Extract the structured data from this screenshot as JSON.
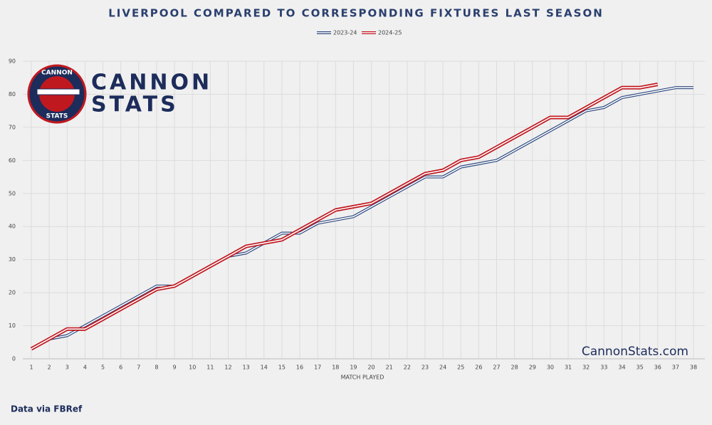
{
  "chart_data": {
    "type": "line",
    "title": "LIVERPOOL COMPARED TO CORRESPONDING FIXTURES LAST SEASON",
    "x_label": "MATCH PLAYED",
    "x": [
      1,
      2,
      3,
      4,
      5,
      6,
      7,
      8,
      9,
      10,
      11,
      12,
      13,
      14,
      15,
      16,
      17,
      18,
      19,
      20,
      21,
      22,
      23,
      24,
      25,
      26,
      27,
      28,
      29,
      30,
      31,
      32,
      33,
      34,
      35,
      36,
      37,
      38
    ],
    "xlim": [
      1,
      38
    ],
    "xticks": [
      1,
      2,
      3,
      4,
      5,
      6,
      7,
      8,
      9,
      10,
      11,
      12,
      13,
      14,
      15,
      16,
      17,
      18,
      19,
      20,
      21,
      22,
      23,
      24,
      25,
      26,
      27,
      28,
      29,
      30,
      31,
      32,
      33,
      34,
      35,
      36,
      37,
      38
    ],
    "ylim": [
      0,
      90
    ],
    "yticks": [
      0,
      10,
      20,
      30,
      40,
      50,
      60,
      70,
      80,
      90
    ],
    "grid": true,
    "legend": "top",
    "series": [
      {
        "name": "2023-24",
        "color": "#2f4a80",
        "values": [
          3,
          6,
          7,
          10,
          13,
          16,
          19,
          22,
          22,
          25,
          28,
          31,
          32,
          35,
          38,
          38,
          41,
          42,
          43,
          46,
          49,
          52,
          55,
          55,
          58,
          59,
          60,
          63,
          66,
          69,
          72,
          75,
          76,
          79,
          80,
          81,
          82,
          82
        ]
      },
      {
        "name": "2024-25",
        "color": "#c0181f",
        "values": [
          3,
          6,
          9,
          9,
          12,
          15,
          18,
          21,
          22,
          25,
          28,
          31,
          34,
          35,
          36,
          39,
          42,
          45,
          46,
          47,
          50,
          53,
          56,
          57,
          60,
          61,
          64,
          67,
          70,
          73,
          73,
          76,
          79,
          82,
          82,
          83,
          null,
          null
        ]
      }
    ]
  },
  "logo": {
    "ring_top": "CANNON",
    "ring_bottom": "STATS",
    "line1": "CANNON",
    "line2": "STATS"
  },
  "watermark": "CannonStats.com",
  "source": "Data via FBRef"
}
